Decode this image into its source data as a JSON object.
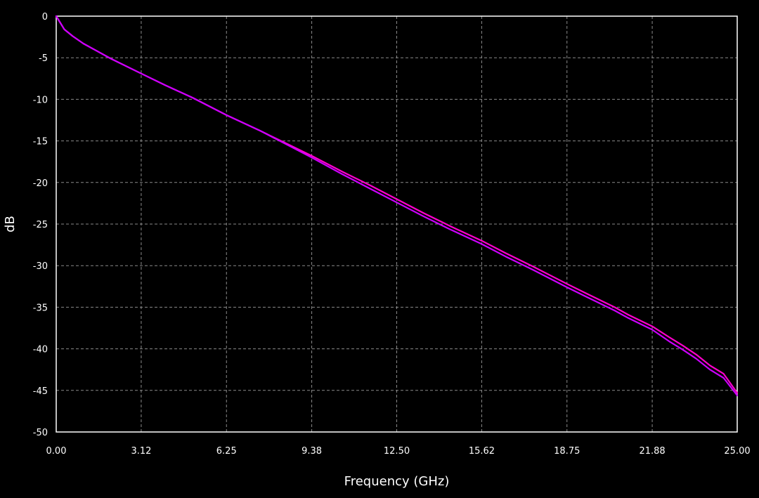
{
  "chart_data": {
    "type": "line",
    "title": "",
    "xlabel": "Frequency (GHz)",
    "ylabel": "dB",
    "xlim": [
      0,
      25
    ],
    "ylim": [
      -50,
      0
    ],
    "x_ticks": [
      "0.00",
      "3.12",
      "6.25",
      "9.38",
      "12.50",
      "15.62",
      "18.75",
      "21.88",
      "25.00"
    ],
    "y_ticks": [
      "0",
      "-5",
      "-10",
      "-15",
      "-20",
      "-25",
      "-30",
      "-35",
      "-40",
      "-45",
      "-50"
    ],
    "grid": true,
    "background": "#000000",
    "series": [
      {
        "color": "#ff00cc",
        "x": [
          0,
          0.3,
          0.6,
          1.0,
          1.5,
          2.0,
          3.12,
          4.0,
          5.0,
          6.25,
          7.5,
          8.5,
          9.38,
          10.5,
          11.5,
          12.5,
          13.5,
          14.5,
          15.62,
          16.5,
          17.5,
          18.75,
          19.5,
          20.5,
          21.0,
          21.88,
          22.5,
          23.0,
          23.5,
          24.0,
          24.5,
          25.0
        ],
        "y": [
          0,
          -1.6,
          -2.4,
          -3.3,
          -4.2,
          -5.1,
          -6.9,
          -8.3,
          -9.8,
          -11.9,
          -13.8,
          -15.4,
          -16.8,
          -18.7,
          -20.3,
          -22.0,
          -23.7,
          -25.3,
          -27.0,
          -28.5,
          -30.1,
          -32.2,
          -33.4,
          -35.0,
          -35.9,
          -37.3,
          -38.6,
          -39.6,
          -40.7,
          -42.0,
          -43.0,
          -45.3
        ]
      },
      {
        "color": "#cc00ff",
        "x": [
          0,
          0.3,
          0.6,
          1.0,
          1.5,
          2.0,
          3.12,
          4.0,
          5.0,
          6.25,
          7.5,
          8.5,
          9.38,
          10.5,
          11.5,
          12.5,
          13.5,
          14.5,
          15.62,
          16.5,
          17.5,
          18.75,
          19.5,
          20.5,
          21.0,
          21.88,
          22.5,
          23.0,
          23.5,
          24.0,
          24.5,
          25.0
        ],
        "y": [
          0,
          -1.6,
          -2.4,
          -3.3,
          -4.2,
          -5.1,
          -6.9,
          -8.3,
          -9.8,
          -11.9,
          -13.8,
          -15.5,
          -17.0,
          -19.0,
          -20.7,
          -22.4,
          -24.1,
          -25.7,
          -27.4,
          -28.9,
          -30.5,
          -32.6,
          -33.8,
          -35.4,
          -36.3,
          -37.7,
          -39.1,
          -40.1,
          -41.2,
          -42.5,
          -43.5,
          -45.6
        ]
      }
    ]
  }
}
